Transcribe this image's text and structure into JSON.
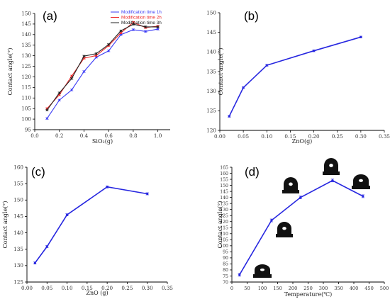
{
  "chart_data": [
    {
      "panel": "(a)",
      "type": "line",
      "xlabel": "SiO₂(g)",
      "ylabel": "Contact angle(°)",
      "xlim": [
        0,
        1.1
      ],
      "ylim": [
        95,
        150
      ],
      "xticks": [
        0.0,
        0.2,
        0.4,
        0.6,
        0.8,
        1.0
      ],
      "xtick_labels": [
        "0.0",
        "0.2",
        "0.4",
        "0.6",
        "0.8",
        "1.0"
      ],
      "yticks": [
        95,
        100,
        105,
        110,
        115,
        120,
        125,
        130,
        135,
        140,
        145,
        150
      ],
      "ytick_labels": [
        "95",
        "100",
        "105",
        "110",
        "115",
        "120",
        "125",
        "130",
        "135",
        "140",
        "145",
        "150"
      ],
      "legend_position": "top-right",
      "x": [
        0.1,
        0.2,
        0.3,
        0.4,
        0.5,
        0.6,
        0.7,
        0.8,
        0.9,
        1.0
      ],
      "series": [
        {
          "name": "Modification time 1h",
          "color": "#3b3bf5",
          "values": [
            100.3,
            109.0,
            113.8,
            122.5,
            129.3,
            132.3,
            140.0,
            142.3,
            141.5,
            142.6
          ]
        },
        {
          "name": "Modification time 2h",
          "color": "#ee2b2b",
          "values": [
            105.0,
            111.5,
            120.4,
            128.8,
            130.1,
            134.8,
            140.8,
            145.8,
            143.3,
            144.0
          ]
        },
        {
          "name": "Modification time 3h",
          "color": "#222222",
          "values": [
            104.3,
            112.4,
            119.2,
            129.8,
            131.0,
            135.3,
            141.8,
            144.9,
            143.7,
            143.6
          ]
        }
      ]
    },
    {
      "panel": "(b)",
      "type": "line",
      "xlabel": "ZnO(g)",
      "ylabel": "Contact angle(°)",
      "xlim": [
        0,
        0.35
      ],
      "ylim": [
        120,
        150
      ],
      "xticks": [
        0.0,
        0.05,
        0.1,
        0.15,
        0.2,
        0.25,
        0.3,
        0.35
      ],
      "xtick_labels": [
        "0.00",
        "0.05",
        "0.10",
        "0.15",
        "0.20",
        "0.25",
        "0.30",
        "0.35"
      ],
      "yticks": [
        120,
        125,
        130,
        135,
        140,
        145,
        150
      ],
      "ytick_labels": [
        "120",
        "125",
        "130",
        "135",
        "140",
        "145",
        "150"
      ],
      "x": [
        0.02,
        0.05,
        0.1,
        0.2,
        0.3
      ],
      "series": [
        {
          "color": "#2727e0",
          "values": [
            123.6,
            130.9,
            136.6,
            140.3,
            143.8
          ]
        }
      ]
    },
    {
      "panel": "(c)",
      "type": "line",
      "xlabel": "ZnO (g)",
      "ylabel": "Contact angle(°)",
      "xlim": [
        0,
        0.35
      ],
      "ylim": [
        125,
        160
      ],
      "xticks": [
        0.0,
        0.05,
        0.1,
        0.15,
        0.2,
        0.25,
        0.3,
        0.35
      ],
      "xtick_labels": [
        "0.00",
        "0.05",
        "0.10",
        "0.15",
        "0.20",
        "0.25",
        "0.30",
        "0.35"
      ],
      "yticks": [
        125,
        130,
        135,
        140,
        145,
        150,
        155,
        160
      ],
      "ytick_labels": [
        "125",
        "130",
        "135",
        "140",
        "145",
        "150",
        "155",
        "160"
      ],
      "x": [
        0.02,
        0.05,
        0.1,
        0.2,
        0.3
      ],
      "series": [
        {
          "color": "#2727e0",
          "values": [
            130.8,
            135.8,
            145.5,
            154.0,
            151.9
          ]
        }
      ]
    },
    {
      "panel": "(d)",
      "type": "line",
      "xlabel": "Temperature(℃)",
      "ylabel": "Contact angle(°)",
      "xlim": [
        0,
        500
      ],
      "ylim": [
        70,
        165
      ],
      "xticks": [
        0,
        50,
        100,
        150,
        200,
        250,
        300,
        350,
        400,
        450,
        500
      ],
      "xtick_labels": [
        "0",
        "50",
        "100",
        "150",
        "200",
        "250",
        "300",
        "350",
        "400",
        "450",
        "500"
      ],
      "yticks": [
        70,
        75,
        80,
        85,
        90,
        95,
        100,
        105,
        110,
        115,
        120,
        125,
        130,
        135,
        140,
        145,
        150,
        155,
        160,
        165
      ],
      "ytick_labels": [
        "70",
        "75",
        "80",
        "85",
        "90",
        "95",
        "100",
        "105",
        "110",
        "115",
        "120",
        "125",
        "130",
        "135",
        "140",
        "145",
        "150",
        "155",
        "160",
        "165"
      ],
      "x": [
        25,
        130,
        225,
        330,
        430
      ],
      "series": [
        {
          "color": "#2727e0",
          "values": [
            76.0,
            121.0,
            140.0,
            154.0,
            141.0
          ]
        }
      ],
      "droplet_insets": 5
    }
  ]
}
